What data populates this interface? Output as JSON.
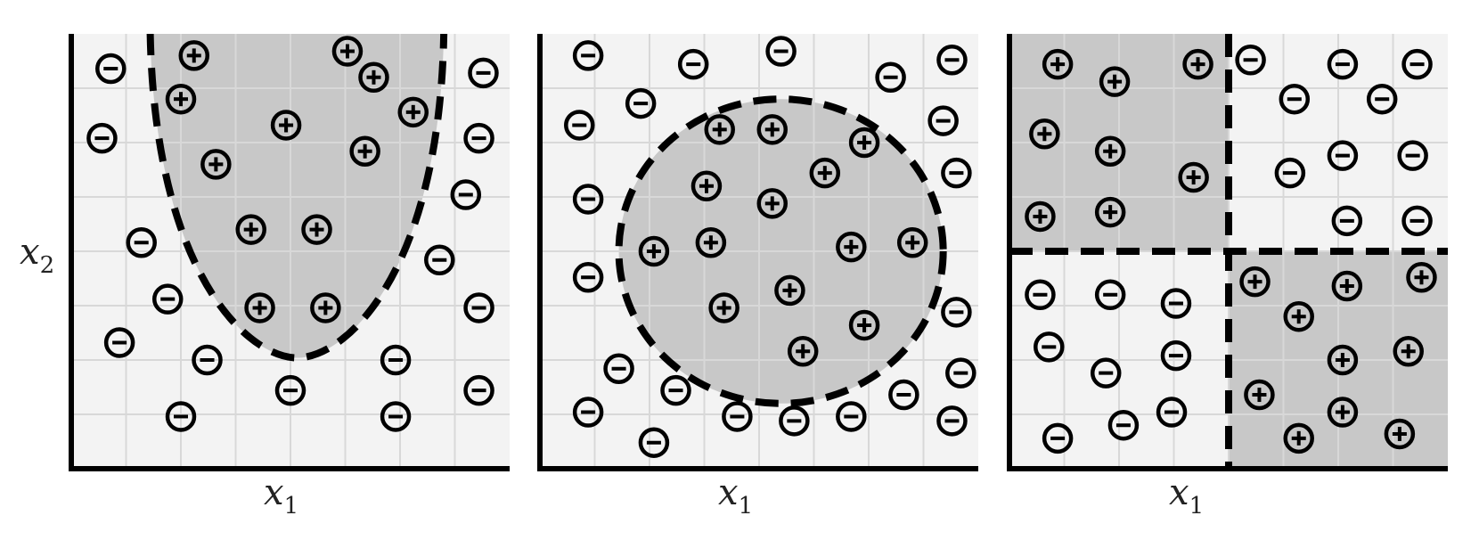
{
  "figure": {
    "y_axis_label": "x",
    "y_axis_label_sub": "2",
    "x_axis_label": "x",
    "x_axis_label_sub": "1"
  },
  "colors": {
    "background": "#f3f3f3",
    "shaded_region": "#c8c8c8",
    "grid": "#d8d8d8",
    "ink": "#000000"
  },
  "icons": {
    "positive": "circled-plus-icon",
    "negative": "circled-minus-icon"
  },
  "panels": [
    {
      "name": "parabola-panel",
      "boundary": "parabola",
      "grid_cells": 8,
      "positive": [
        [
          0.28,
          0.95
        ],
        [
          0.63,
          0.96
        ],
        [
          0.69,
          0.9
        ],
        [
          0.25,
          0.85
        ],
        [
          0.49,
          0.79
        ],
        [
          0.78,
          0.82
        ],
        [
          0.67,
          0.73
        ],
        [
          0.33,
          0.7
        ],
        [
          0.41,
          0.55
        ],
        [
          0.56,
          0.55
        ],
        [
          0.43,
          0.37
        ],
        [
          0.58,
          0.37
        ]
      ],
      "negative": [
        [
          0.09,
          0.92
        ],
        [
          0.94,
          0.91
        ],
        [
          0.07,
          0.76
        ],
        [
          0.93,
          0.76
        ],
        [
          0.9,
          0.63
        ],
        [
          0.16,
          0.52
        ],
        [
          0.84,
          0.48
        ],
        [
          0.22,
          0.39
        ],
        [
          0.93,
          0.37
        ],
        [
          0.11,
          0.29
        ],
        [
          0.31,
          0.25
        ],
        [
          0.74,
          0.25
        ],
        [
          0.5,
          0.18
        ],
        [
          0.93,
          0.18
        ],
        [
          0.25,
          0.12
        ],
        [
          0.74,
          0.12
        ]
      ]
    },
    {
      "name": "circle-panel",
      "boundary": "circle",
      "grid_cells": 8,
      "positive": [
        [
          0.41,
          0.78
        ],
        [
          0.53,
          0.78
        ],
        [
          0.74,
          0.75
        ],
        [
          0.65,
          0.68
        ],
        [
          0.38,
          0.65
        ],
        [
          0.53,
          0.61
        ],
        [
          0.26,
          0.5
        ],
        [
          0.39,
          0.52
        ],
        [
          0.71,
          0.51
        ],
        [
          0.85,
          0.52
        ],
        [
          0.57,
          0.41
        ],
        [
          0.42,
          0.37
        ],
        [
          0.74,
          0.33
        ],
        [
          0.6,
          0.27
        ]
      ],
      "negative": [
        [
          0.11,
          0.95
        ],
        [
          0.35,
          0.93
        ],
        [
          0.55,
          0.96
        ],
        [
          0.8,
          0.9
        ],
        [
          0.94,
          0.94
        ],
        [
          0.23,
          0.84
        ],
        [
          0.09,
          0.79
        ],
        [
          0.92,
          0.8
        ],
        [
          0.95,
          0.68
        ],
        [
          0.11,
          0.62
        ],
        [
          0.11,
          0.44
        ],
        [
          0.95,
          0.36
        ],
        [
          0.18,
          0.23
        ],
        [
          0.96,
          0.22
        ],
        [
          0.31,
          0.18
        ],
        [
          0.83,
          0.17
        ],
        [
          0.11,
          0.13
        ],
        [
          0.45,
          0.12
        ],
        [
          0.58,
          0.11
        ],
        [
          0.71,
          0.12
        ],
        [
          0.94,
          0.11
        ],
        [
          0.26,
          0.06
        ]
      ]
    },
    {
      "name": "quadrant-panel",
      "boundary": "quadrants",
      "grid_cells": 8,
      "positive": [
        [
          0.11,
          0.93
        ],
        [
          0.43,
          0.93
        ],
        [
          0.24,
          0.89
        ],
        [
          0.08,
          0.77
        ],
        [
          0.23,
          0.73
        ],
        [
          0.42,
          0.67
        ],
        [
          0.07,
          0.58
        ],
        [
          0.23,
          0.59
        ],
        [
          0.56,
          0.43
        ],
        [
          0.77,
          0.42
        ],
        [
          0.94,
          0.44
        ],
        [
          0.66,
          0.35
        ],
        [
          0.76,
          0.25
        ],
        [
          0.91,
          0.27
        ],
        [
          0.57,
          0.17
        ],
        [
          0.76,
          0.13
        ],
        [
          0.66,
          0.07
        ],
        [
          0.89,
          0.08
        ]
      ],
      "negative": [
        [
          0.55,
          0.94
        ],
        [
          0.76,
          0.93
        ],
        [
          0.93,
          0.93
        ],
        [
          0.65,
          0.85
        ],
        [
          0.85,
          0.85
        ],
        [
          0.76,
          0.72
        ],
        [
          0.92,
          0.72
        ],
        [
          0.64,
          0.68
        ],
        [
          0.77,
          0.57
        ],
        [
          0.93,
          0.57
        ],
        [
          0.07,
          0.4
        ],
        [
          0.23,
          0.4
        ],
        [
          0.38,
          0.38
        ],
        [
          0.09,
          0.28
        ],
        [
          0.38,
          0.26
        ],
        [
          0.22,
          0.22
        ],
        [
          0.37,
          0.13
        ],
        [
          0.26,
          0.1
        ],
        [
          0.11,
          0.07
        ]
      ]
    }
  ]
}
